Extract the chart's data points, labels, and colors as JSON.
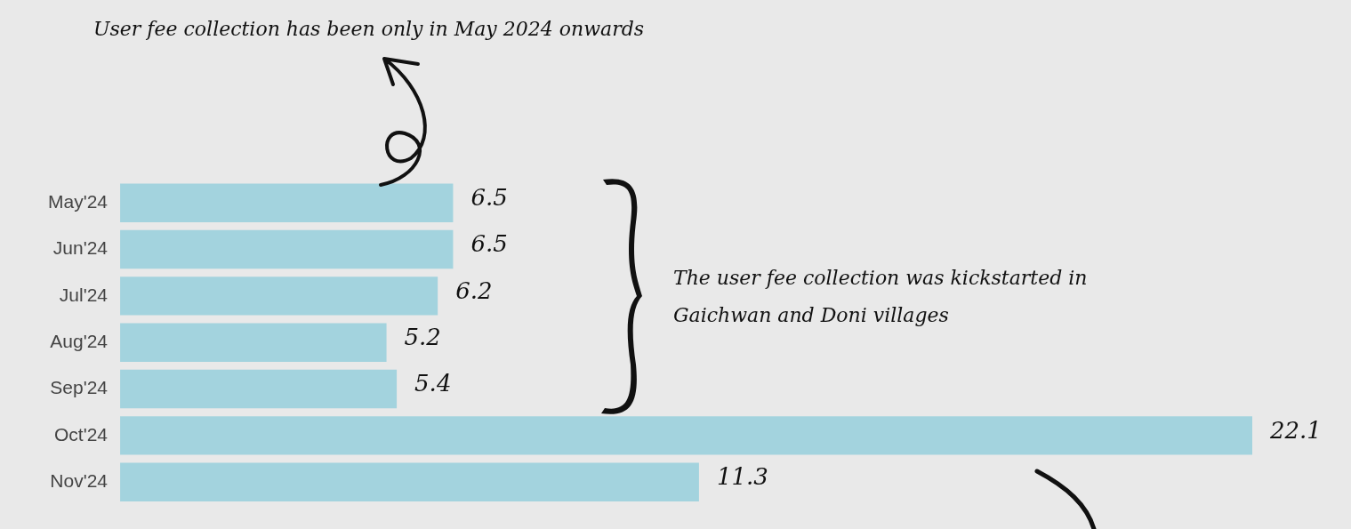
{
  "chart_data": {
    "type": "bar",
    "orientation": "horizontal",
    "categories": [
      "May'24",
      "Jun'24",
      "Jul'24",
      "Aug'24",
      "Sep'24",
      "Oct'24",
      "Nov'24"
    ],
    "values": [
      6.5,
      6.5,
      6.2,
      5.2,
      5.4,
      22.1,
      11.3
    ],
    "color": "#a3d3de",
    "data_labels": true,
    "legend": false,
    "annotations": [
      "User fee collection has been only in May 2024 onwards",
      "The user fee collection was kickstarted in Gaichwan and Doni villages"
    ]
  }
}
